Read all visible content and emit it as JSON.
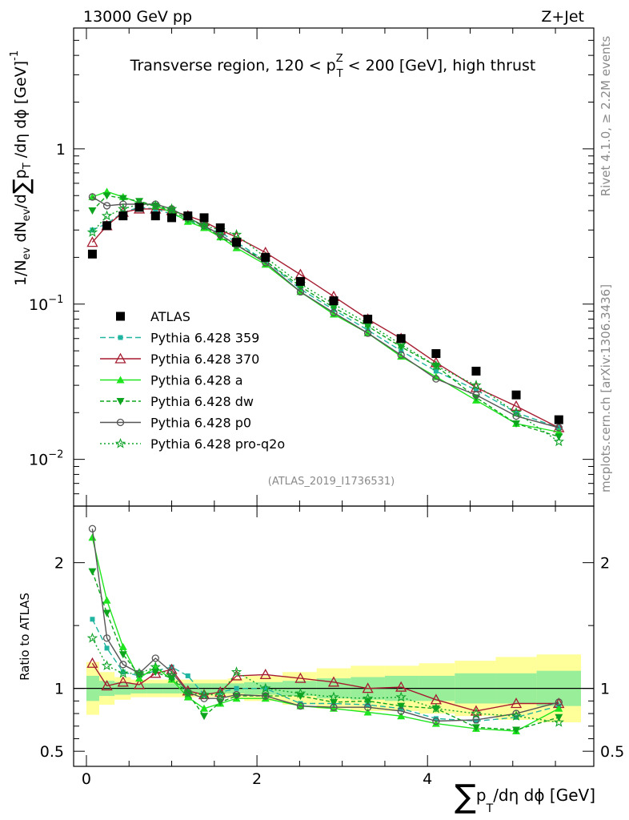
{
  "header": {
    "left": "13000 GeV pp",
    "right": "Z+Jet"
  },
  "side_labels": {
    "top": "Rivet 4.1.0, ≥ 2.2M events",
    "bottom": "mcplots.cern.ch [arXiv:1306.3436]"
  },
  "chart_data": {
    "type": "line",
    "title": "Transverse region, 120 < p_T^Z < 200 [GeV], high thrust",
    "title_parts": {
      "a": "Transverse region, 120 < p",
      "sup": "Z",
      "sub": "T",
      "b": " < 200 [GeV], high thrust"
    },
    "analysis_id": "(ATLAS_2019_I1736531)",
    "ylabel_main": "1/N_ev dN_ev/d∑p_T/dη dϕ [GeV]^-1",
    "ylabel_ratio": "Ratio to ATLAS",
    "xlabel": "∑p_T/dη dϕ [GeV]",
    "ylabel_parts": {
      "p1": "1/N",
      "sub_ev": "ev",
      "p2": " dN",
      "p3": "/d",
      "sum": "∑",
      "p4": "p",
      "sub_t": "T",
      "p5": " /dη dϕ  [GeV]",
      "sup": "-1"
    },
    "xlabel_parts": {
      "sum": "∑",
      "p": "p",
      "sub": "T",
      "rest": "/dη dϕ [GeV]"
    },
    "xlim": [
      -0.15,
      5.95
    ],
    "ylim_main": [
      0.005,
      6.0
    ],
    "ylim_ratio": [
      0.38,
      2.45
    ],
    "x_ticks": [
      "0",
      "2",
      "4"
    ],
    "y_ticks_main": [
      {
        "value": 1,
        "label": "1",
        "exp": ""
      },
      {
        "value": 0.1,
        "label": "10",
        "exp": "−1"
      },
      {
        "value": 0.01,
        "label": "10",
        "exp": "−2"
      }
    ],
    "y_ticks_ratio": [
      {
        "value": 2,
        "label": "2"
      },
      {
        "value": 1,
        "label": "1"
      },
      {
        "value": 0.5,
        "label": "0.5"
      }
    ],
    "x": [
      0.07,
      0.24,
      0.43,
      0.62,
      0.81,
      1.0,
      1.19,
      1.38,
      1.57,
      1.76,
      2.1,
      2.51,
      2.9,
      3.3,
      3.69,
      4.1,
      4.57,
      5.04,
      5.54
    ],
    "bin_edges": [
      0,
      0.15,
      0.33,
      0.52,
      0.71,
      0.9,
      1.09,
      1.28,
      1.47,
      1.66,
      1.85,
      2.3,
      2.7,
      3.1,
      3.5,
      3.9,
      4.32,
      4.8,
      5.28,
      5.8
    ],
    "atlas": {
      "name": "ATLAS",
      "color": "#000000",
      "values": [
        0.21,
        0.32,
        0.37,
        0.42,
        0.37,
        0.36,
        0.37,
        0.36,
        0.31,
        0.25,
        0.2,
        0.14,
        0.105,
        0.08,
        0.06,
        0.048,
        0.037,
        0.026,
        0.018
      ],
      "band_green": [
        0.1,
        0.06,
        0.05,
        0.04,
        0.04,
        0.04,
        0.04,
        0.04,
        0.04,
        0.04,
        0.05,
        0.06,
        0.08,
        0.09,
        0.1,
        0.1,
        0.12,
        0.12,
        0.14
      ],
      "band_yellow": [
        0.21,
        0.13,
        0.09,
        0.07,
        0.07,
        0.07,
        0.07,
        0.07,
        0.07,
        0.08,
        0.1,
        0.13,
        0.16,
        0.18,
        0.18,
        0.2,
        0.22,
        0.25,
        0.27
      ]
    },
    "series": [
      {
        "name": "Pythia 6.428 359",
        "color": "#1fb5a0",
        "dash": "7,4",
        "marker": "square",
        "values": [
          0.3,
          0.33,
          0.39,
          0.42,
          0.41,
          0.38,
          0.35,
          0.31,
          0.29,
          0.25,
          0.19,
          0.125,
          0.092,
          0.068,
          0.05,
          0.037,
          0.028,
          0.02,
          0.016
        ],
        "ratio": [
          1.55,
          1.32,
          1.13,
          1.1,
          1.14,
          1.17,
          1.1,
          0.95,
          0.97,
          1.0,
          1.0,
          0.88,
          0.88,
          0.87,
          0.84,
          0.76,
          0.74,
          0.77,
          0.86
        ]
      },
      {
        "name": "Pythia 6.428 370",
        "color": "#a51c30",
        "dash": "",
        "marker": "triangle-open",
        "values": [
          0.25,
          0.32,
          0.39,
          0.41,
          0.41,
          0.4,
          0.37,
          0.34,
          0.3,
          0.27,
          0.215,
          0.155,
          0.112,
          0.08,
          0.06,
          0.042,
          0.029,
          0.022,
          0.016
        ],
        "ratio": [
          1.2,
          1.02,
          1.05,
          1.03,
          1.12,
          1.15,
          0.98,
          0.95,
          0.97,
          1.1,
          1.11,
          1.08,
          1.05,
          1.0,
          1.01,
          0.91,
          0.82,
          0.88,
          0.88
        ]
      },
      {
        "name": "Pythia 6.428 a",
        "color": "#1ee51e",
        "dash": "",
        "marker": "triangle",
        "values": [
          0.49,
          0.53,
          0.49,
          0.45,
          0.43,
          0.39,
          0.34,
          0.31,
          0.27,
          0.23,
          0.18,
          0.12,
          0.086,
          0.065,
          0.046,
          0.034,
          0.024,
          0.017,
          0.015
        ],
        "ratio": [
          2.2,
          1.7,
          1.33,
          1.08,
          1.17,
          1.07,
          0.93,
          0.84,
          0.88,
          0.92,
          0.92,
          0.86,
          0.84,
          0.81,
          0.78,
          0.72,
          0.68,
          0.66,
          0.84
        ]
      },
      {
        "name": "Pythia 6.428 dw",
        "color": "#0ea51e",
        "dash": "5,3",
        "marker": "triangle-down",
        "values": [
          0.4,
          0.5,
          0.48,
          0.46,
          0.43,
          0.4,
          0.35,
          0.32,
          0.27,
          0.24,
          0.19,
          0.13,
          0.095,
          0.072,
          0.053,
          0.04,
          0.025,
          0.017,
          0.014
        ],
        "ratio": [
          1.93,
          1.6,
          1.27,
          1.11,
          1.13,
          1.08,
          0.96,
          0.78,
          0.89,
          0.94,
          0.94,
          0.94,
          0.89,
          0.9,
          0.86,
          0.84,
          0.69,
          0.67,
          0.77
        ]
      },
      {
        "name": "Pythia 6.428 p0",
        "color": "#555555",
        "dash": "",
        "marker": "circle-open",
        "values": [
          0.49,
          0.43,
          0.44,
          0.44,
          0.44,
          0.41,
          0.36,
          0.32,
          0.28,
          0.24,
          0.185,
          0.12,
          0.088,
          0.065,
          0.047,
          0.033,
          0.026,
          0.019,
          0.016
        ],
        "ratio": [
          2.27,
          1.4,
          1.19,
          1.12,
          1.24,
          1.13,
          0.97,
          0.92,
          0.92,
          0.95,
          0.94,
          0.86,
          0.85,
          0.85,
          0.82,
          0.74,
          0.75,
          0.8,
          0.89
        ]
      },
      {
        "name": "Pythia 6.428 pro-q2o",
        "color": "#10a42a",
        "dash": "2,3",
        "marker": "star",
        "values": [
          0.29,
          0.37,
          0.41,
          0.44,
          0.43,
          0.41,
          0.36,
          0.32,
          0.3,
          0.28,
          0.2,
          0.135,
          0.1,
          0.075,
          0.055,
          0.04,
          0.03,
          0.02,
          0.013
        ],
        "ratio": [
          1.4,
          1.18,
          1.12,
          1.12,
          1.17,
          1.1,
          0.96,
          0.95,
          0.95,
          1.13,
          1.0,
          0.96,
          0.93,
          0.92,
          0.93,
          0.84,
          0.8,
          0.78,
          0.73
        ]
      }
    ]
  }
}
